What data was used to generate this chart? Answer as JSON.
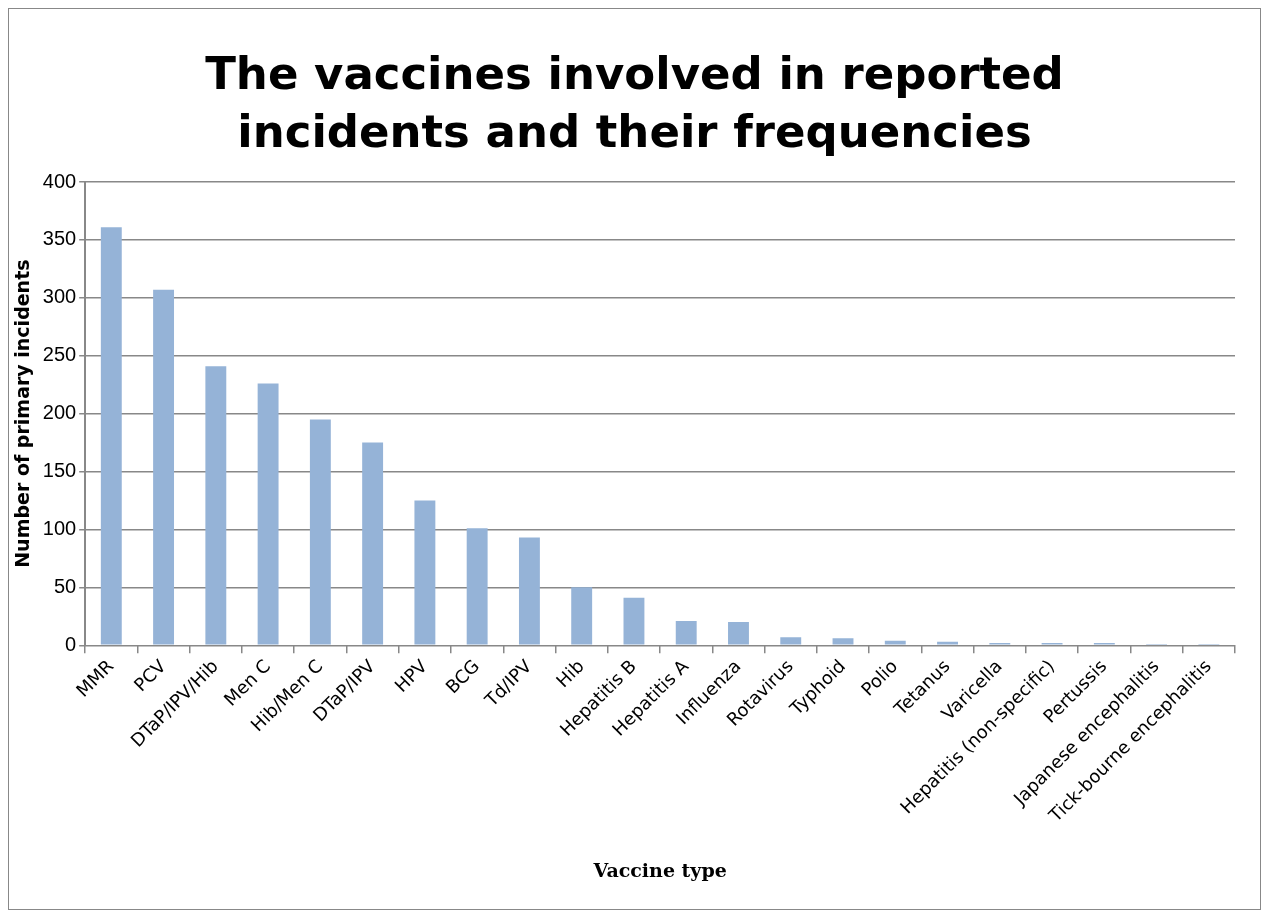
{
  "chart_data": {
    "type": "bar",
    "title": "The vaccines involved in reported incidents and their frequencies",
    "xlabel": "Vaccine type",
    "ylabel": "Number of primary incidents",
    "categories": [
      "MMR",
      "PCV",
      "DTaP/IPV/Hib",
      "Men C",
      "Hib/Men C",
      "DTaP/IPV",
      "HPV",
      "BCG",
      "Td/IPV",
      "Hib",
      "Hepatitis B",
      "Hepatitis A",
      "Influenza",
      "Rotavirus",
      "Typhoid",
      "Polio",
      "Tetanus",
      "Varicella",
      "Hepatitis (non-specific)",
      "Pertussis",
      "Japanese encephalitis",
      "Tick-bourne encephalitis"
    ],
    "values": [
      361,
      307,
      241,
      226,
      195,
      175,
      125,
      101,
      93,
      50,
      41,
      21,
      20,
      7,
      6,
      4,
      3,
      2,
      2,
      2,
      1,
      1
    ],
    "color": "#95b3d7",
    "ylim": [
      0,
      400
    ],
    "yticks": [
      0,
      50,
      100,
      150,
      200,
      250,
      300,
      350,
      400
    ],
    "grid": "y",
    "legend": false
  }
}
